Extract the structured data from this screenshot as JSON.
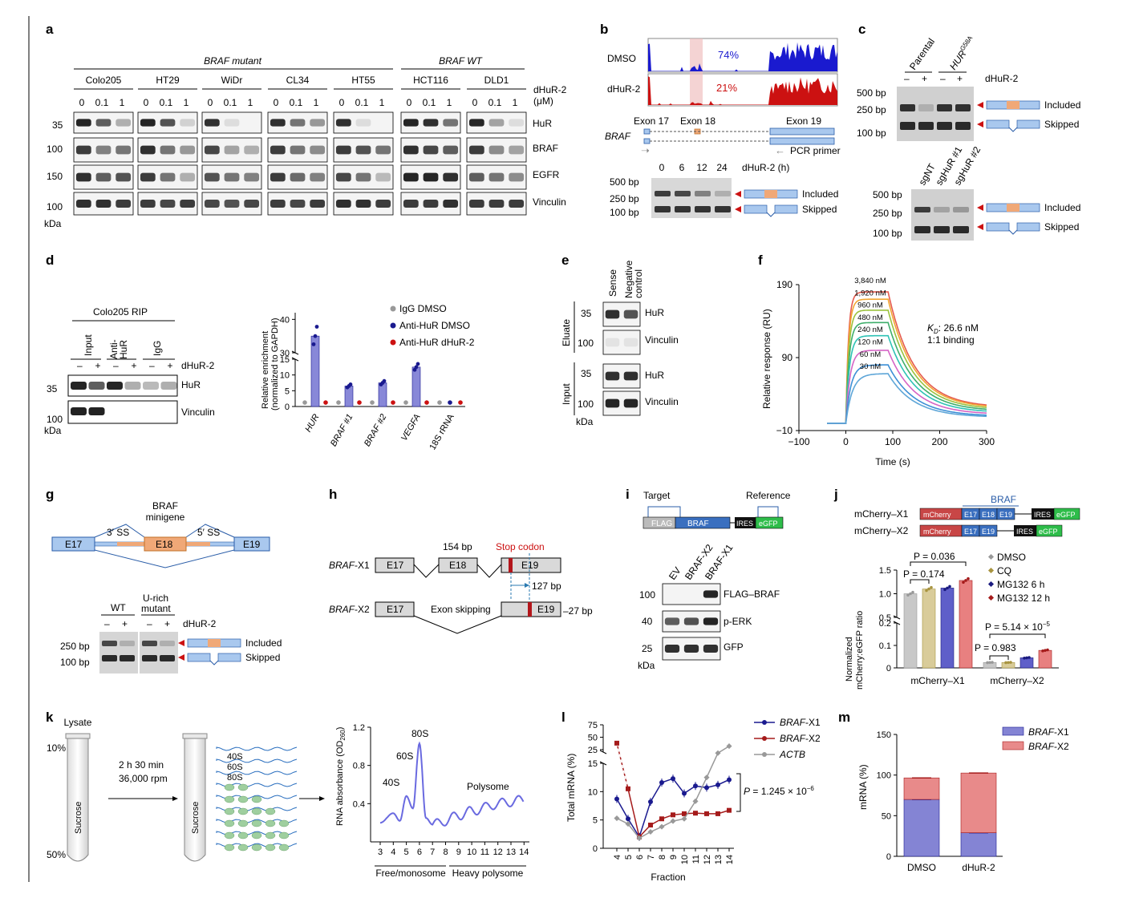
{
  "panel_letters": [
    "a",
    "b",
    "c",
    "d",
    "e",
    "f",
    "g",
    "h",
    "i",
    "j",
    "k",
    "l",
    "m"
  ],
  "colors": {
    "dmso_blue": "#1a1acf",
    "dhur_red": "#cc1111",
    "exon_blue": "#a9c8ee",
    "exon_orange": "#f0a877",
    "purple": "#7c7ccf",
    "pink": "#e08080",
    "gray": "#999999",
    "dk_red": "#a51b1b"
  },
  "panel_a": {
    "group_braf_mut": "BRAF mutant",
    "group_braf_wt": "BRAF WT",
    "cell_lines": [
      "Colo205",
      "HT29",
      "WiDr",
      "CL34",
      "HT55",
      "HCT116",
      "DLD1"
    ],
    "doses": [
      "0",
      "0.1",
      "1"
    ],
    "dose_label": "dHuR-2",
    "dose_unit": "(μM)",
    "blots": [
      "HuR",
      "BRAF",
      "EGFR",
      "Vinculin"
    ],
    "mw": [
      "35",
      "100",
      "150",
      "100"
    ],
    "kda": "kDa"
  },
  "panel_b": {
    "tracks": [
      "DMSO",
      "dHuR-2"
    ],
    "psi": [
      "74%",
      "21%"
    ],
    "exons": [
      "Exon 17",
      "Exon 18",
      "Exon 19"
    ],
    "gene": "BRAF",
    "primer": "PCR primer",
    "timepoints": [
      "0",
      "6",
      "12",
      "24"
    ],
    "time_label": "dHuR-2 (h)",
    "bp": [
      "500 bp",
      "250 bp",
      "100 bp"
    ],
    "products": [
      "Included",
      "Skipped"
    ]
  },
  "panel_c": {
    "lanes_top": [
      "Parental",
      "HUR",
      "G58A"
    ],
    "signs": [
      "–",
      "+",
      "–",
      "+"
    ],
    "drug": "dHuR-2",
    "bp": [
      "500 bp",
      "250 bp",
      "100 bp"
    ],
    "products": [
      "Included",
      "Skipped"
    ],
    "lanes_bottom": [
      "sgNT",
      "sgHuR #1",
      "sgHuR #2"
    ]
  },
  "panel_d": {
    "rip_title": "Colo205 RIP",
    "lanes": [
      "Input",
      "Anti-\nHuR",
      "IgG"
    ],
    "signs": [
      "–",
      "+",
      "–",
      "+",
      "–",
      "+"
    ],
    "drug": "dHuR-2",
    "blots": [
      "HuR",
      "Vinculin"
    ],
    "mw": [
      "35",
      "100"
    ],
    "kda": "kDa",
    "ylabel": "Relative enrichment",
    "ylabel2": "(normalized to GAPDH)",
    "legend": [
      "IgG DMSO",
      "Anti-HuR DMSO",
      "Anti-HuR dHuR-2"
    ],
    "yticks_low": [
      "0",
      "5",
      "10",
      "15"
    ],
    "yticks_high": [
      "30",
      "40"
    ]
  },
  "panel_e": {
    "lanes": [
      "Sense",
      "Negative",
      "control"
    ],
    "sections": [
      "Eluate",
      "Input"
    ],
    "blots": [
      "HuR",
      "Vinculin",
      "HuR",
      "Vinculin"
    ],
    "mw": [
      "35",
      "100",
      "35",
      "100"
    ],
    "kda": "kDa"
  },
  "panel_f": {
    "xlabel": "Time (s)",
    "ylabel": "Relative response (RU)",
    "yticks": [
      "190",
      "90",
      "−10"
    ],
    "xticks": [
      "−100",
      "0",
      "100",
      "200",
      "300"
    ],
    "conc": [
      "3,840 nM",
      "1,920 nM",
      "960 nM",
      "480 nM",
      "240 nM",
      "120 nM",
      "60 nM",
      "30 nM"
    ],
    "kd_sym": "K",
    "kd_sub": "D",
    "kd_val": ": 26.6 nM",
    "binding": "1:1 binding"
  },
  "panel_g": {
    "title1": "BRAF",
    "title2": "minigene",
    "exons": [
      "E17",
      "E18",
      "E19"
    ],
    "ss": [
      "3′ SS",
      "5′ SS"
    ],
    "lanes": [
      "WT",
      "U-rich",
      "mutant"
    ],
    "signs": [
      "–",
      "+",
      "–",
      "+"
    ],
    "drug": "dHuR-2",
    "bp": [
      "250 bp",
      "100 bp"
    ],
    "products": [
      "Included",
      "Skipped"
    ]
  },
  "panel_h": {
    "iso1": "BRAF",
    "iso1s": "-X1",
    "iso2": "BRAF",
    "iso2s": "-X2",
    "exons": [
      "E17",
      "E18",
      "E19",
      "E17",
      "E19"
    ],
    "bp154": "154 bp",
    "stop": "Stop codon",
    "bp127": "127 bp",
    "skip": "Exon skipping",
    "minus27": "–27 bp"
  },
  "panel_i": {
    "target": "Target",
    "reference": "Reference",
    "parts": [
      "FLAG",
      "BRAF",
      "IRES",
      "eGFP"
    ],
    "lanes": [
      "EV",
      "BRAF-X2",
      "BRAF-X1"
    ],
    "blots": [
      "FLAG–BRAF",
      "p-ERK",
      "GFP"
    ],
    "mw": [
      "100",
      "40",
      "25"
    ],
    "kda": "kDa"
  },
  "panel_j": {
    "braf": "BRAF",
    "constructs": [
      "mCherry–X1",
      "mCherry–X2"
    ],
    "parts": [
      "mCherry",
      "E17",
      "E18",
      "E19",
      "IRES",
      "eGFP"
    ],
    "ylabel1": "Normalized",
    "ylabel2": "mCherry:eGFP ratio",
    "legend": [
      "DMSO",
      "CQ",
      "MG132 6 h",
      "MG132 12 h"
    ],
    "p1": "P = 0.036",
    "p2": "P = 0.174",
    "p3a": "P = 5.14 × 10",
    "p3b": "−5",
    "p4": "P = 0.983",
    "yticks_hi": [
      "0.5",
      "1.0",
      "1.5"
    ],
    "yticks_lo": [
      "0",
      "0.1",
      "0.2"
    ],
    "groups": [
      "mCherry–X1",
      "mCherry–X2"
    ]
  },
  "panel_k": {
    "lysate": "Lysate",
    "pct": [
      "10%",
      "50%"
    ],
    "sucrose": "Sucrose",
    "spin1": "2 h 30 min",
    "spin2": "36,000 rpm",
    "subunits": [
      "40S",
      "60S",
      "80S"
    ],
    "peaks": [
      "40S",
      "60S",
      "80S",
      "Polysome"
    ],
    "ylabel": "RNA absorbance (OD",
    "ylabel_sub": "260",
    "yticks": [
      "0.4",
      "0.8",
      "1.2"
    ],
    "xticks": [
      "3",
      "4",
      "5",
      "6",
      "7",
      "8",
      "9",
      "10",
      "11",
      "12",
      "13",
      "14"
    ],
    "xgroups": [
      "Free/monosome",
      "Heavy polysome"
    ]
  },
  "panel_l": {
    "ylabel": "Total mRNA (%)",
    "xlabel": "Fraction",
    "legend_names": [
      "BRAF",
      "BRAF",
      "ACTB"
    ],
    "legend_suffix": [
      "-X1",
      "-X2",
      ""
    ],
    "pval": "P = 1.245 × 10",
    "pval_exp": "−6",
    "yticks_lo": [
      "0",
      "5",
      "10",
      "15"
    ],
    "yticks_hi": [
      "25",
      "50",
      "75"
    ],
    "xticks": [
      "4",
      "5",
      "6",
      "7",
      "8",
      "9",
      "10",
      "11",
      "12",
      "13",
      "14"
    ]
  },
  "panel_m": {
    "ylabel": "mRNA (%)",
    "yticks": [
      "0",
      "50",
      "100",
      "150"
    ],
    "categories": [
      "DMSO",
      "dHuR-2"
    ],
    "legend_names": [
      "BRAF",
      "BRAF"
    ],
    "legend_suffix": [
      "-X1",
      "-X2"
    ]
  },
  "chart_data": [
    {
      "type": "bar",
      "panel": "d",
      "categories": [
        "HUR",
        "BRAF #1",
        "BRAF #2",
        "VEGFA",
        "18S rRNA"
      ],
      "series": [
        {
          "name": "IgG DMSO",
          "values": [
            1,
            1,
            1,
            1,
            1
          ]
        },
        {
          "name": "Anti-HuR DMSO",
          "values": [
            35,
            6.5,
            7.5,
            12.5,
            1
          ]
        },
        {
          "name": "Anti-HuR dHuR-2",
          "values": [
            1,
            1,
            1,
            1,
            1
          ]
        }
      ],
      "ylabel": "Relative enrichment (normalized to GAPDH)",
      "broken_axis": [
        15,
        30
      ]
    },
    {
      "type": "line",
      "panel": "f",
      "xlabel": "Time (s)",
      "ylabel": "Relative response (RU)",
      "xlim": [
        -100,
        300
      ],
      "ylim": [
        -10,
        190
      ],
      "series": [
        {
          "name": "3,840 nM",
          "plateau": 180
        },
        {
          "name": "1,920 nM",
          "plateau": 170
        },
        {
          "name": "960 nM",
          "plateau": 155
        },
        {
          "name": "480 nM",
          "plateau": 138
        },
        {
          "name": "240 nM",
          "plateau": 120
        },
        {
          "name": "120 nM",
          "plateau": 100
        },
        {
          "name": "60 nM",
          "plateau": 80
        },
        {
          "name": "30 nM",
          "plateau": 68
        }
      ]
    },
    {
      "type": "bar",
      "panel": "j",
      "categories": [
        "mCherry–X1",
        "mCherry–X2"
      ],
      "series": [
        {
          "name": "DMSO",
          "values": [
            1.0,
            0.024
          ]
        },
        {
          "name": "CQ",
          "values": [
            1.1,
            0.024
          ]
        },
        {
          "name": "MG132 6 h",
          "values": [
            1.12,
            0.045
          ]
        },
        {
          "name": "MG132 12 h",
          "values": [
            1.28,
            0.078
          ]
        }
      ],
      "ylabel": "Normalized mCherry:eGFP ratio"
    },
    {
      "type": "line",
      "panel": "k",
      "xlabel": "Fraction",
      "ylabel": "RNA absorbance (OD260)",
      "ylim": [
        0,
        1.2
      ],
      "x": [
        3,
        4,
        4.5,
        5,
        5.5,
        6,
        6.5,
        7,
        8,
        9,
        10,
        11,
        12,
        13,
        14
      ],
      "values": [
        0.2,
        0.3,
        0.22,
        0.48,
        0.35,
        1.03,
        0.25,
        0.18,
        0.22,
        0.28,
        0.32,
        0.36,
        0.4,
        0.42,
        0.44
      ]
    },
    {
      "type": "line",
      "panel": "l",
      "xlabel": "Fraction",
      "ylabel": "Total mRNA (%)",
      "x": [
        4,
        5,
        6,
        7,
        8,
        9,
        10,
        11,
        12,
        13,
        14
      ],
      "series": [
        {
          "name": "BRAF-X1",
          "values": [
            8.7,
            5.2,
            2,
            8.2,
            11.6,
            12.3,
            9.7,
            11,
            10.7,
            11.2,
            12.1
          ]
        },
        {
          "name": "BRAF-X2",
          "values": [
            38,
            10.5,
            2,
            4.1,
            5.2,
            5.9,
            6.1,
            6.2,
            6.1,
            6.1,
            6.7
          ]
        },
        {
          "name": "ACTB",
          "values": [
            5.3,
            4.3,
            1.8,
            2.9,
            3.8,
            4.8,
            5.2,
            8.3,
            12.5,
            18,
            32
          ]
        }
      ]
    },
    {
      "type": "bar",
      "panel": "m",
      "categories": [
        "DMSO",
        "dHuR-2"
      ],
      "series": [
        {
          "name": "BRAF-X1",
          "values": [
            70,
            29
          ]
        },
        {
          "name": "BRAF-X2",
          "values": [
            26.5,
            73.5
          ]
        }
      ],
      "ylabel": "mRNA (%)",
      "ylim": [
        0,
        150
      ],
      "stacked": true
    }
  ]
}
